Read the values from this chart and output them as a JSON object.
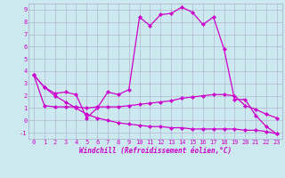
{
  "title": "",
  "xlabel": "Windchill (Refroidissement éolien,°C)",
  "ylabel": "",
  "xlim": [
    -0.5,
    23.5
  ],
  "ylim": [
    -1.5,
    9.5
  ],
  "xticks": [
    0,
    1,
    2,
    3,
    4,
    5,
    6,
    7,
    8,
    9,
    10,
    11,
    12,
    13,
    14,
    15,
    16,
    17,
    18,
    19,
    20,
    21,
    22,
    23
  ],
  "yticks": [
    -1,
    0,
    1,
    2,
    3,
    4,
    5,
    6,
    7,
    8,
    9
  ],
  "background_color": "#cce9f0",
  "line_color": "#cc00cc",
  "line1_x": [
    0,
    1,
    2,
    3,
    4,
    5,
    6,
    7,
    8,
    9,
    10,
    11,
    12,
    13,
    14,
    15,
    16,
    17,
    18,
    19,
    20,
    21,
    22,
    23
  ],
  "line1_y": [
    3.7,
    2.7,
    2.2,
    2.3,
    2.1,
    0.2,
    1.0,
    2.3,
    2.1,
    2.5,
    8.4,
    7.7,
    8.6,
    8.7,
    9.2,
    8.8,
    7.8,
    8.4,
    5.8,
    1.7,
    1.7,
    0.4,
    -0.5,
    -1.1
  ],
  "line2_x": [
    0,
    1,
    2,
    3,
    4,
    5,
    6,
    7,
    8,
    9,
    10,
    11,
    12,
    13,
    14,
    15,
    16,
    17,
    18,
    19,
    20,
    21,
    22,
    23
  ],
  "line2_y": [
    3.7,
    1.2,
    1.1,
    1.1,
    1.1,
    1.0,
    1.1,
    1.1,
    1.1,
    1.2,
    1.3,
    1.4,
    1.5,
    1.6,
    1.8,
    1.9,
    2.0,
    2.1,
    2.1,
    2.0,
    1.2,
    0.9,
    0.5,
    0.2
  ],
  "line3_x": [
    0,
    1,
    2,
    3,
    4,
    5,
    6,
    7,
    8,
    9,
    10,
    11,
    12,
    13,
    14,
    15,
    16,
    17,
    18,
    19,
    20,
    21,
    22,
    23
  ],
  "line3_y": [
    3.7,
    2.7,
    2.0,
    1.5,
    1.0,
    0.5,
    0.2,
    0.0,
    -0.2,
    -0.3,
    -0.4,
    -0.5,
    -0.5,
    -0.6,
    -0.6,
    -0.7,
    -0.7,
    -0.7,
    -0.7,
    -0.7,
    -0.8,
    -0.8,
    -0.9,
    -1.1
  ],
  "grid_color": "#aaaacc",
  "marker": "D",
  "markersize": 2.0,
  "linewidth": 0.9,
  "tick_fontsize": 5.0,
  "xlabel_fontsize": 5.5
}
